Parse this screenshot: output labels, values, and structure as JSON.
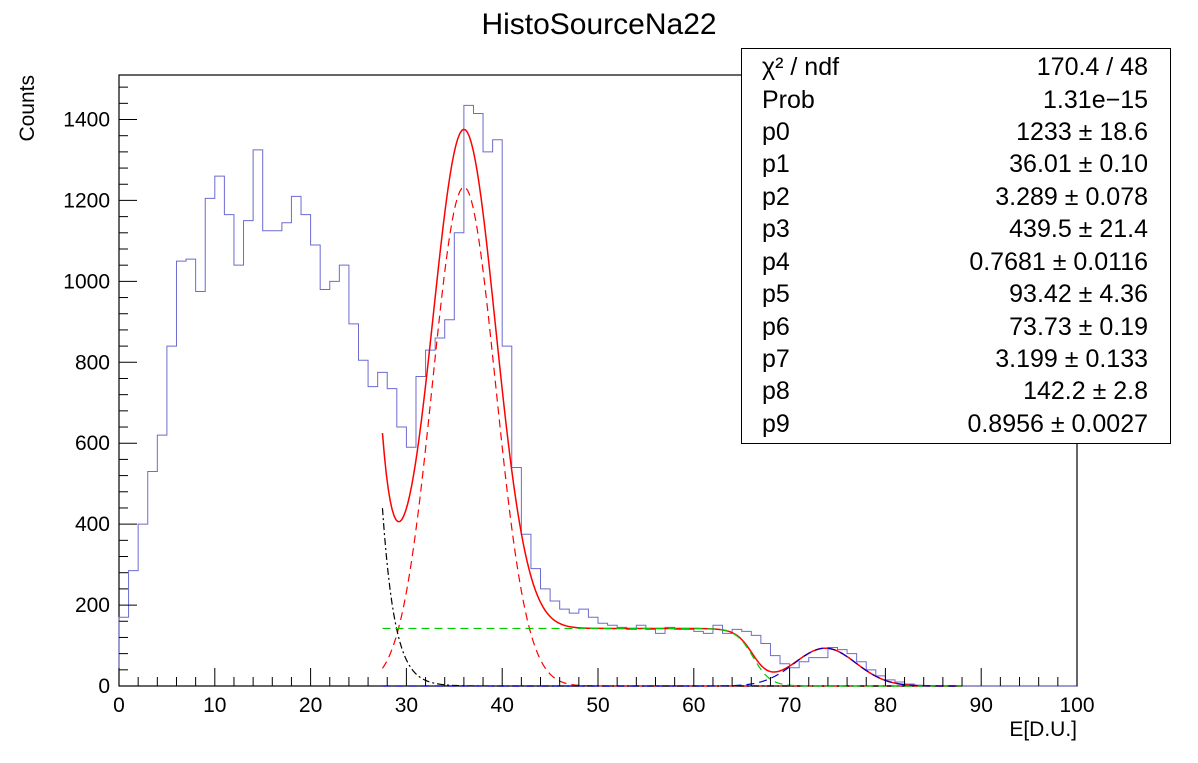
{
  "chart_data": {
    "type": "histogram",
    "title": "HistoSourceNa22",
    "xlabel": "E[D.U.]",
    "ylabel": "Counts",
    "xlim": [
      0,
      100
    ],
    "ylim": [
      0,
      1510
    ],
    "x_ticks": [
      0,
      10,
      20,
      30,
      40,
      50,
      60,
      70,
      80,
      90,
      100
    ],
    "y_ticks": [
      0,
      200,
      400,
      600,
      800,
      1000,
      1200,
      1400
    ],
    "histogram": {
      "name": "HistoSourceNa22",
      "color": "#6b6bd0",
      "bin_width": 1,
      "bin_start": 0,
      "values": [
        170,
        285,
        400,
        530,
        620,
        840,
        1050,
        1055,
        975,
        1205,
        1260,
        1165,
        1040,
        1150,
        1325,
        1125,
        1125,
        1145,
        1210,
        1165,
        1090,
        980,
        1000,
        1040,
        895,
        805,
        740,
        775,
        735,
        640,
        590,
        765,
        830,
        860,
        905,
        1120,
        1435,
        1415,
        1320,
        1350,
        840,
        540,
        375,
        290,
        240,
        210,
        190,
        180,
        190,
        170,
        155,
        150,
        145,
        140,
        150,
        140,
        130,
        145,
        140,
        140,
        135,
        130,
        150,
        130,
        140,
        135,
        125,
        105,
        75,
        55,
        45,
        60,
        70,
        70,
        95,
        90,
        80,
        60,
        40,
        25,
        15,
        10,
        5,
        2,
        0,
        0,
        0,
        0,
        0,
        0,
        0,
        0,
        0,
        0,
        0,
        0,
        0,
        0,
        0,
        0
      ]
    },
    "fit_range": [
      27.5,
      88
    ],
    "fit_parameters": {
      "p0": 1233,
      "p1": 36.01,
      "p2": 3.289,
      "p3": 439.5,
      "p4": 0.7681,
      "p5": 93.42,
      "p6": 73.73,
      "p7": 3.199,
      "p8": 142.2,
      "p9": 0.8956
    },
    "curves": [
      {
        "name": "total_fit",
        "color": "#ff0000",
        "style": "solid"
      },
      {
        "name": "photopeak_gaussian",
        "color": "#ff0000",
        "style": "dashed"
      },
      {
        "name": "exponential_background",
        "color": "#000000",
        "style": "dashed"
      },
      {
        "name": "compton_plateau",
        "color": "#00cc00",
        "style": "dashed"
      },
      {
        "name": "second_peak_gaussian",
        "color": "#0000cc",
        "style": "dashed"
      }
    ],
    "legend_placement": "top-right",
    "grid": false
  },
  "stats_box": {
    "rows": [
      {
        "name": "χ² / ndf",
        "value": "170.4 / 48"
      },
      {
        "name": "Prob",
        "value": "1.31e−15"
      },
      {
        "name": "p0",
        "value": "1233 ± 18.6"
      },
      {
        "name": "p1",
        "value": "36.01 ± 0.10"
      },
      {
        "name": "p2",
        "value": "3.289 ± 0.078"
      },
      {
        "name": "p3",
        "value": "439.5 ± 21.4"
      },
      {
        "name": "p4",
        "value": "0.7681 ± 0.0116"
      },
      {
        "name": "p5",
        "value": "93.42 ± 4.36"
      },
      {
        "name": "p6",
        "value": "73.73 ± 0.19"
      },
      {
        "name": "p7",
        "value": "3.199 ± 0.133"
      },
      {
        "name": "p8",
        "value": "142.2 ± 2.8"
      },
      {
        "name": "p9",
        "value": "0.8956 ± 0.0027"
      }
    ]
  }
}
